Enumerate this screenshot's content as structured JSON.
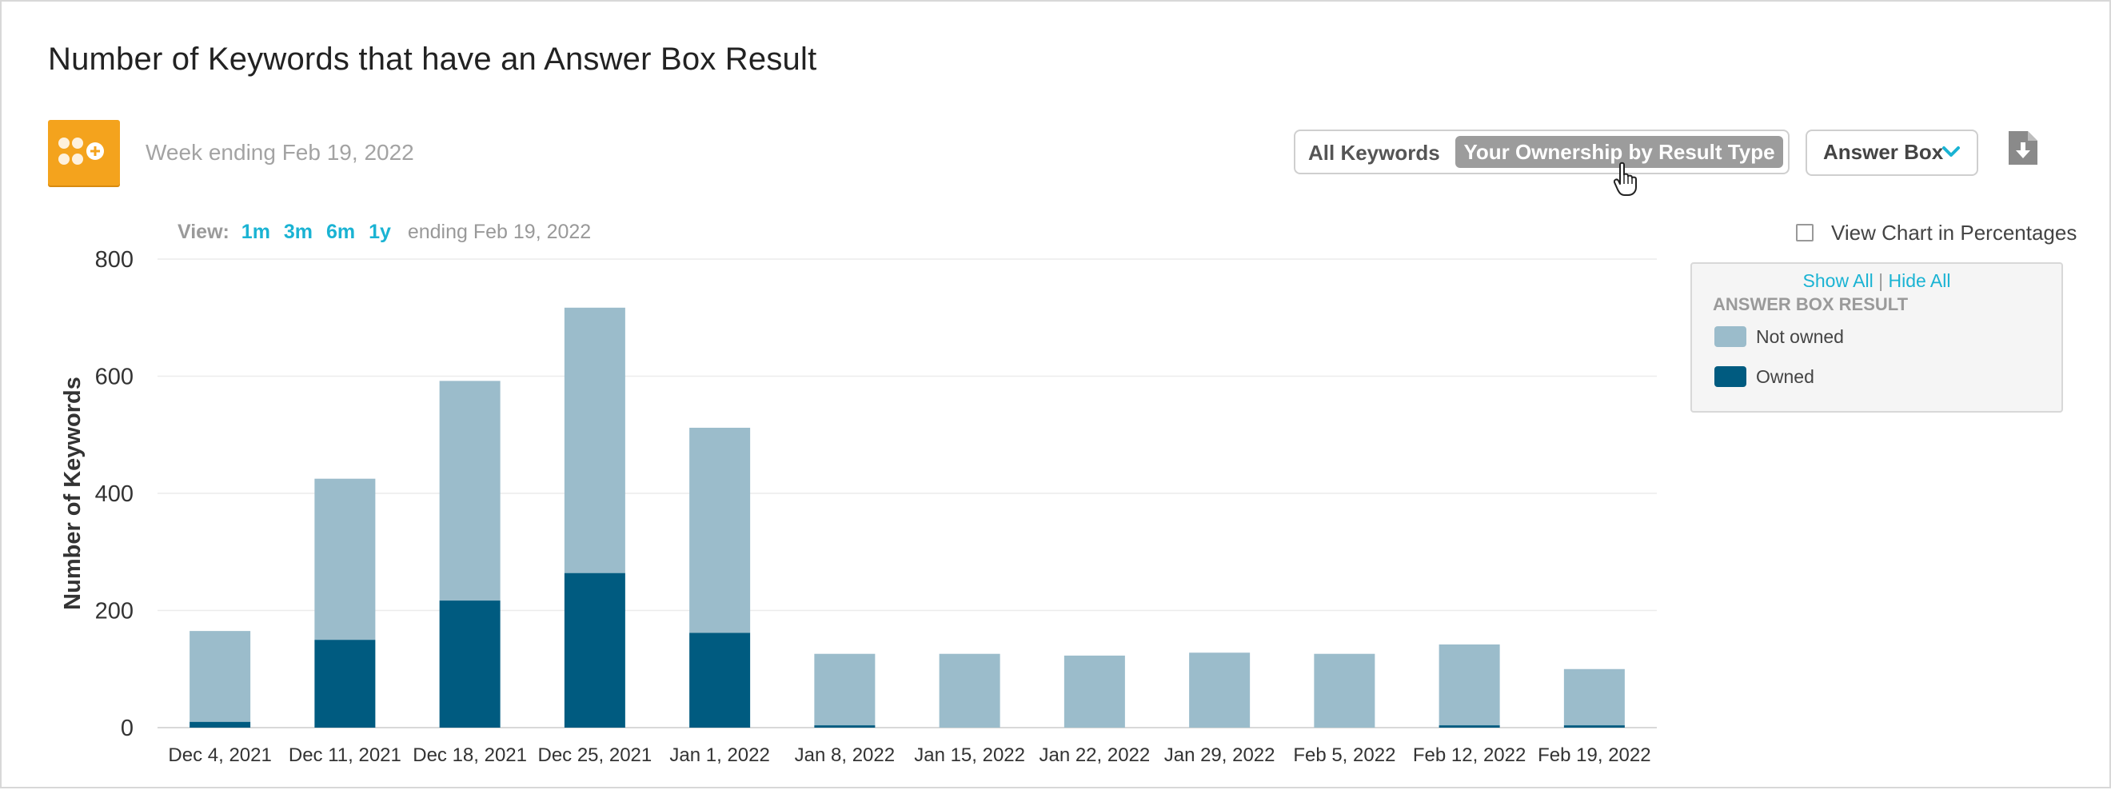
{
  "title": "Number of Keywords that have an Answer Box Result",
  "week_label": "Week ending Feb 19, 2022",
  "toggle": {
    "all_label": "All Keywords",
    "ownership_label": "Your Ownership by Result Type",
    "selected": "Your Ownership by Result Type"
  },
  "dropdown": {
    "label": "Answer Box"
  },
  "view": {
    "label": "View:",
    "ranges": [
      "1m",
      "3m",
      "6m",
      "1y"
    ],
    "ending": "ending Feb 19, 2022"
  },
  "percentages": {
    "label": "View Chart in Percentages",
    "checked": false
  },
  "legend": {
    "show_all": "Show All",
    "separator": "|",
    "hide_all": "Hide All",
    "heading": "ANSWER BOX RESULT",
    "items": [
      {
        "label": "Not owned",
        "color": "#9bbccb"
      },
      {
        "label": "Owned",
        "color": "#005b80"
      }
    ]
  },
  "colors": {
    "accent": "#1ab3d3",
    "logo": "#f4a31d",
    "toggle_selected": "#9c9c9c"
  },
  "chart_data": {
    "type": "bar",
    "stacked": true,
    "categories": [
      "Dec 4, 2021",
      "Dec 11, 2021",
      "Dec 18, 2021",
      "Dec 25, 2021",
      "Jan 1, 2022",
      "Jan 8, 2022",
      "Jan 15, 2022",
      "Jan 22, 2022",
      "Jan 29, 2022",
      "Feb 5, 2022",
      "Feb 12, 2022",
      "Feb 19, 2022"
    ],
    "series": [
      {
        "name": "Owned",
        "color": "#005b80",
        "values": [
          10,
          150,
          217,
          264,
          162,
          4,
          0,
          0,
          0,
          0,
          4,
          4
        ]
      },
      {
        "name": "Not owned",
        "color": "#9bbccb",
        "values": [
          155,
          275,
          375,
          453,
          350,
          122,
          126,
          123,
          128,
          126,
          138,
          96
        ]
      }
    ],
    "ylabel": "Number of Keywords",
    "xlabel": "",
    "ylim": [
      0,
      800
    ],
    "yticks": [
      0,
      200,
      400,
      600,
      800
    ],
    "grid": true
  }
}
